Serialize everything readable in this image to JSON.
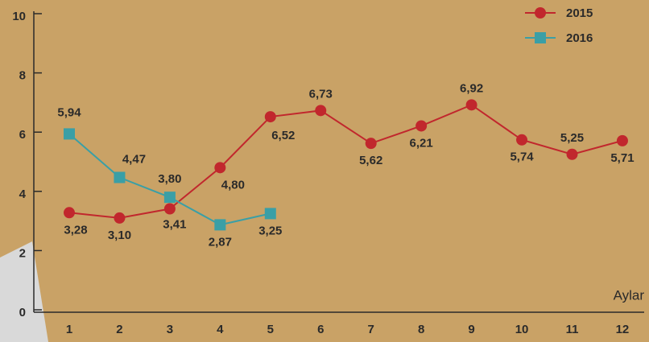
{
  "chart_data": {
    "type": "line",
    "x_label": "Aylar",
    "categories": [
      "1",
      "2",
      "3",
      "4",
      "5",
      "6",
      "7",
      "8",
      "9",
      "10",
      "11",
      "12"
    ],
    "series": [
      {
        "name": "2015",
        "color": "#c1272d",
        "marker": "circle",
        "values": [
          3.28,
          3.1,
          3.41,
          4.8,
          6.52,
          6.73,
          5.62,
          6.21,
          6.92,
          5.74,
          5.25,
          5.71
        ],
        "value_labels": [
          "3,28",
          "3,10",
          "3,41",
          "4,80",
          "6,52",
          "6,73",
          "5,62",
          "6,21",
          "6,92",
          "5,74",
          "5,25",
          "5,71"
        ]
      },
      {
        "name": "2016",
        "color": "#3a9fa6",
        "marker": "square",
        "values": [
          5.94,
          4.47,
          3.8,
          2.87,
          3.25,
          null,
          null,
          null,
          null,
          null,
          null,
          null
        ],
        "value_labels": [
          "5,94",
          "4,47",
          "3,80",
          "2,87",
          "3,25",
          null,
          null,
          null,
          null,
          null,
          null,
          null
        ]
      }
    ],
    "ylim": [
      0,
      10
    ],
    "yticks": [
      0,
      2,
      4,
      6,
      8,
      10
    ],
    "grid": false,
    "legend": "top-right"
  }
}
